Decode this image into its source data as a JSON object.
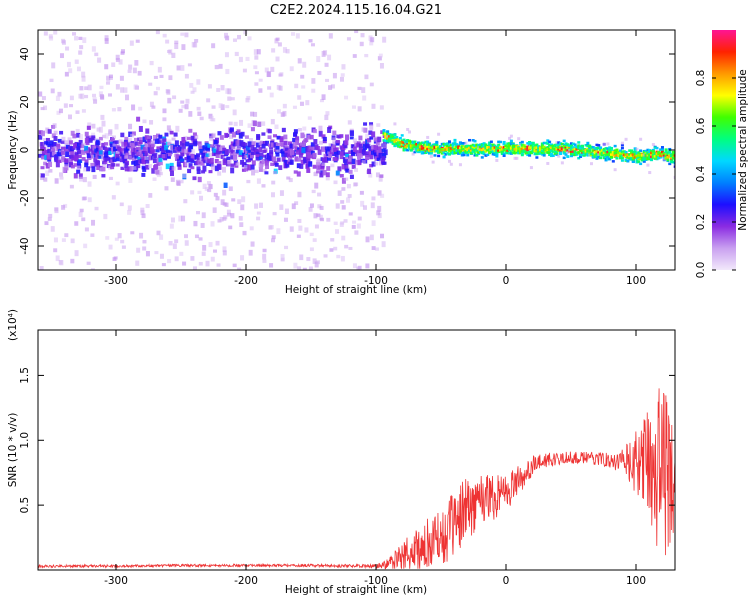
{
  "title": "C2E2.2024.115.16.04.G21",
  "chart_data": [
    {
      "type": "heatmap",
      "xlabel": "Height of straight line (km)",
      "ylabel": "Frequency (Hz)",
      "xlim": [
        -360,
        130
      ],
      "ylim": [
        -50,
        50
      ],
      "xticks": [
        -300,
        -200,
        -100,
        0,
        100
      ],
      "xtick_labels": [
        "-300",
        "-200",
        "-100",
        "0",
        "100"
      ],
      "yticks": [
        -40,
        -20,
        0,
        20,
        40
      ],
      "ytick_labels": [
        "-40",
        "-20",
        "0",
        "20",
        "40"
      ],
      "colorbar": {
        "label": "Normalized spectral amplitude",
        "range": [
          0,
          1
        ],
        "ticks": [
          0.0,
          0.2,
          0.4,
          0.6,
          0.8
        ],
        "tick_labels": [
          "0.0",
          "0.2",
          "0.4",
          "0.6",
          "0.8"
        ],
        "colors": [
          "#f2e9fb",
          "#c9a0f0",
          "#8a2be2",
          "#1d0fff",
          "#0080ff",
          "#00d8ff",
          "#00ff80",
          "#40ff00",
          "#ffff00",
          "#ff9900",
          "#ff2200",
          "#ff1493"
        ]
      },
      "regions": [
        {
          "x": [
            -360,
            -95
          ],
          "center_freq": 0,
          "core_halfwidth_hz": 10,
          "scatter_halfwidth_hz": 50,
          "peak_amplitude": 0.3
        },
        {
          "x": [
            -95,
            130
          ],
          "center_freq": 0,
          "core_halfwidth_hz": 4,
          "scatter_halfwidth_hz": 8,
          "peak_amplitude": 0.9
        }
      ],
      "ridge_centerline": {
        "x": [
          -95,
          -80,
          -60,
          -40,
          -20,
          0,
          20,
          40,
          60,
          80,
          100,
          120,
          130
        ],
        "freq": [
          7,
          3,
          1,
          1,
          1,
          1,
          1,
          1,
          0,
          -1,
          -2,
          -1,
          -3
        ]
      }
    },
    {
      "type": "line",
      "xlabel": "Height of straight line (km)",
      "ylabel": "SNR (10 * v/v)",
      "y_multiplier_label": "(x10⁴)",
      "xlim": [
        -360,
        130
      ],
      "ylim": [
        0,
        1.85
      ],
      "xticks": [
        -300,
        -200,
        -100,
        0,
        100
      ],
      "xtick_labels": [
        "-300",
        "-200",
        "-100",
        "0",
        "100"
      ],
      "yticks": [
        0.5,
        1.0,
        1.5
      ],
      "ytick_labels": [
        "0.5",
        "1.0",
        "1.5"
      ],
      "series": [
        {
          "color": "#ee3333",
          "x": [
            -360,
            -300,
            -250,
            -200,
            -150,
            -100,
            -90,
            -75,
            -60,
            -50,
            -40,
            -30,
            -20,
            -10,
            0,
            10,
            20,
            30,
            40,
            50,
            60,
            70,
            80,
            90,
            100,
            110,
            115,
            120,
            125,
            130
          ],
          "mean": [
            0.03,
            0.03,
            0.035,
            0.035,
            0.035,
            0.03,
            0.05,
            0.12,
            0.2,
            0.25,
            0.35,
            0.48,
            0.55,
            0.58,
            0.6,
            0.7,
            0.8,
            0.84,
            0.86,
            0.87,
            0.86,
            0.86,
            0.85,
            0.83,
            0.82,
            0.82,
            0.8,
            0.78,
            0.7,
            0.65
          ],
          "noise_amplitude": [
            0.01,
            0.01,
            0.01,
            0.01,
            0.01,
            0.015,
            0.05,
            0.15,
            0.2,
            0.22,
            0.25,
            0.25,
            0.22,
            0.2,
            0.15,
            0.12,
            0.08,
            0.06,
            0.05,
            0.05,
            0.05,
            0.05,
            0.06,
            0.1,
            0.25,
            0.45,
            0.6,
            0.75,
            0.6,
            0.45
          ]
        }
      ]
    }
  ]
}
